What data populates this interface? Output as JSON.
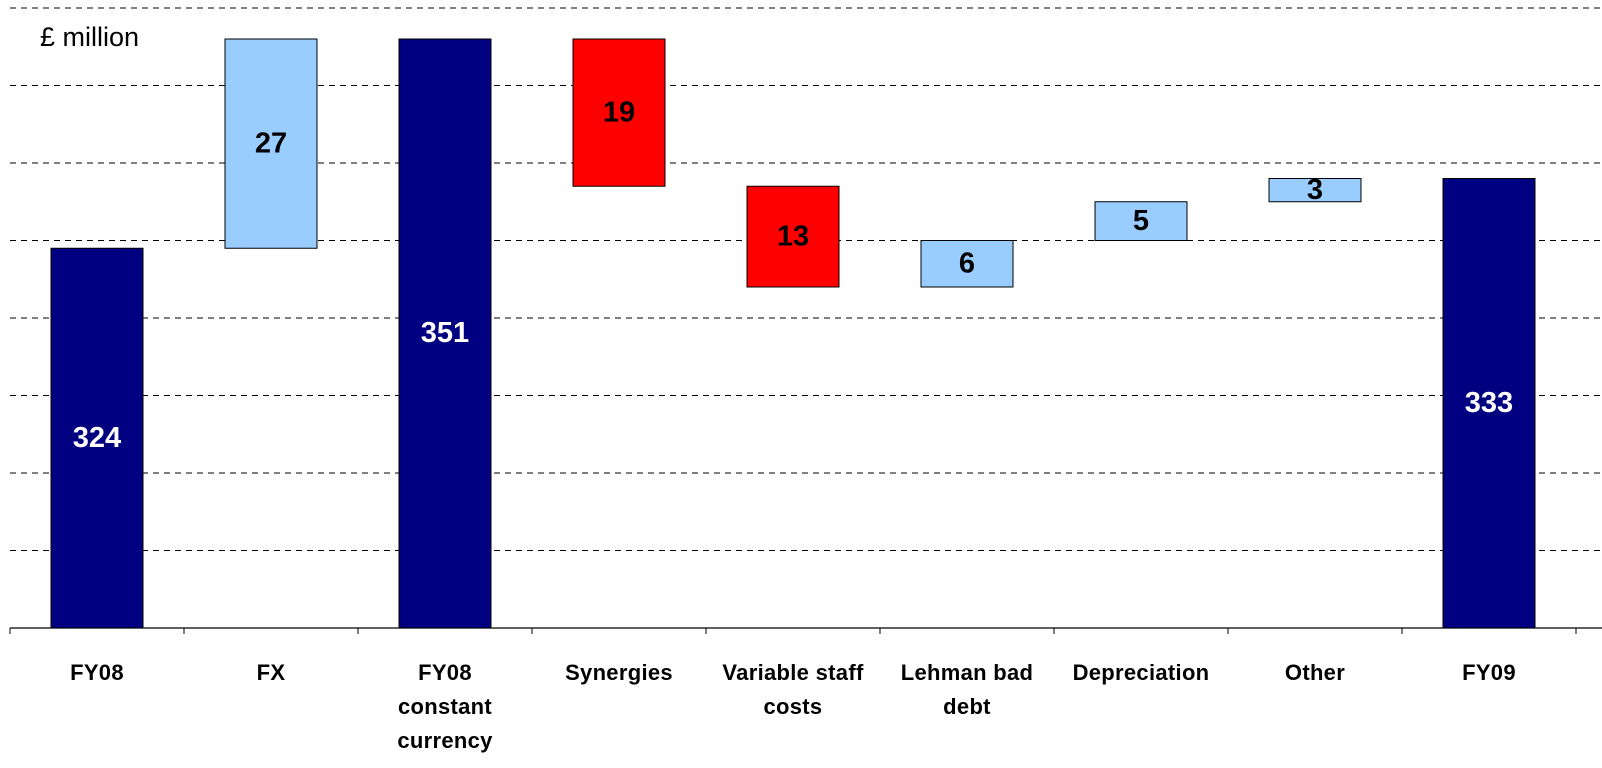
{
  "chart_data": {
    "type": "waterfall",
    "annotation": "£ million",
    "categories": [
      "FY08",
      "FX",
      "FY08 constant currency",
      "Synergies",
      "Variable staff costs",
      "Lehman bad debt",
      "Depreciation",
      "Other",
      "FY09"
    ],
    "values": [
      324,
      27,
      351,
      -19,
      -13,
      6,
      5,
      3,
      333
    ],
    "value_labels": [
      "324",
      "27",
      "351",
      "19",
      "13",
      "6",
      "5",
      "3",
      "333"
    ],
    "totals": [
      true,
      false,
      true,
      false,
      false,
      false,
      false,
      false,
      true
    ],
    "colors": [
      "#000080",
      "#99ccff",
      "#000080",
      "#ff0000",
      "#ff0000",
      "#99ccff",
      "#99ccff",
      "#99ccff",
      "#000080"
    ],
    "label_colors": [
      "#ffffff",
      "#000000",
      "#ffffff",
      "#000000",
      "#000000",
      "#000000",
      "#000000",
      "#000000",
      "#ffffff"
    ],
    "ylim": [
      275,
      355
    ],
    "yticks": [
      275,
      285,
      295,
      305,
      315,
      325,
      335,
      345,
      355
    ],
    "grid": true
  }
}
